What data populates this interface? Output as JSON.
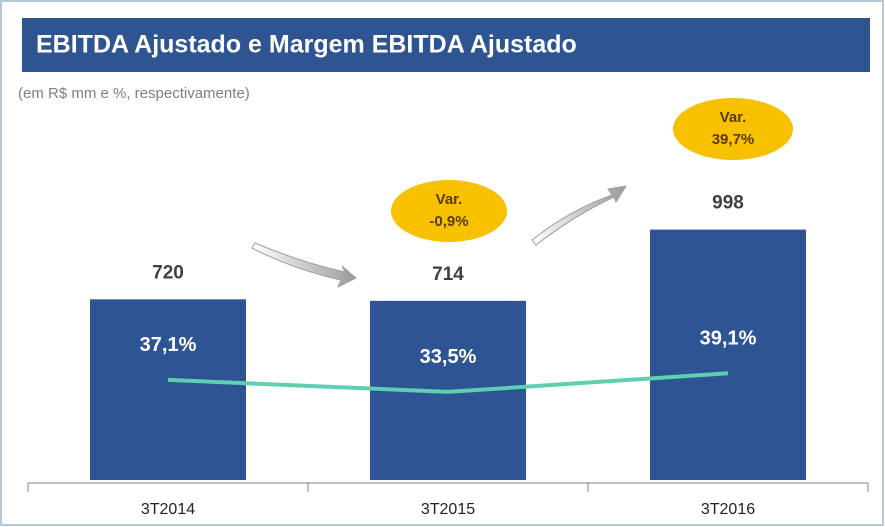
{
  "chart_data": {
    "type": "bar",
    "title": "EBITDA Ajustado e Margem EBITDA Ajustado",
    "subtitle": "(em R$ mm e %, respectivamente)",
    "categories": [
      "3T2014",
      "3T2015",
      "3T2016"
    ],
    "series": [
      {
        "name": "EBITDA Ajustado",
        "color": "#2f5494",
        "values": [
          720,
          714,
          998
        ]
      },
      {
        "name": "Margem EBITDA Ajustado",
        "color": "#5ecfb0",
        "values": [
          37.1,
          33.5,
          39.1
        ],
        "value_labels": [
          "37,1%",
          "33,5%",
          "39,1%"
        ],
        "axis": "y2",
        "type": "line"
      }
    ],
    "ylim": [
      0,
      1100
    ],
    "y2lim": [
      7,
      90
    ],
    "annotations": [
      [
        "Var.",
        "-0,9%"
      ],
      [
        "Var.",
        "39,7%"
      ]
    ]
  }
}
